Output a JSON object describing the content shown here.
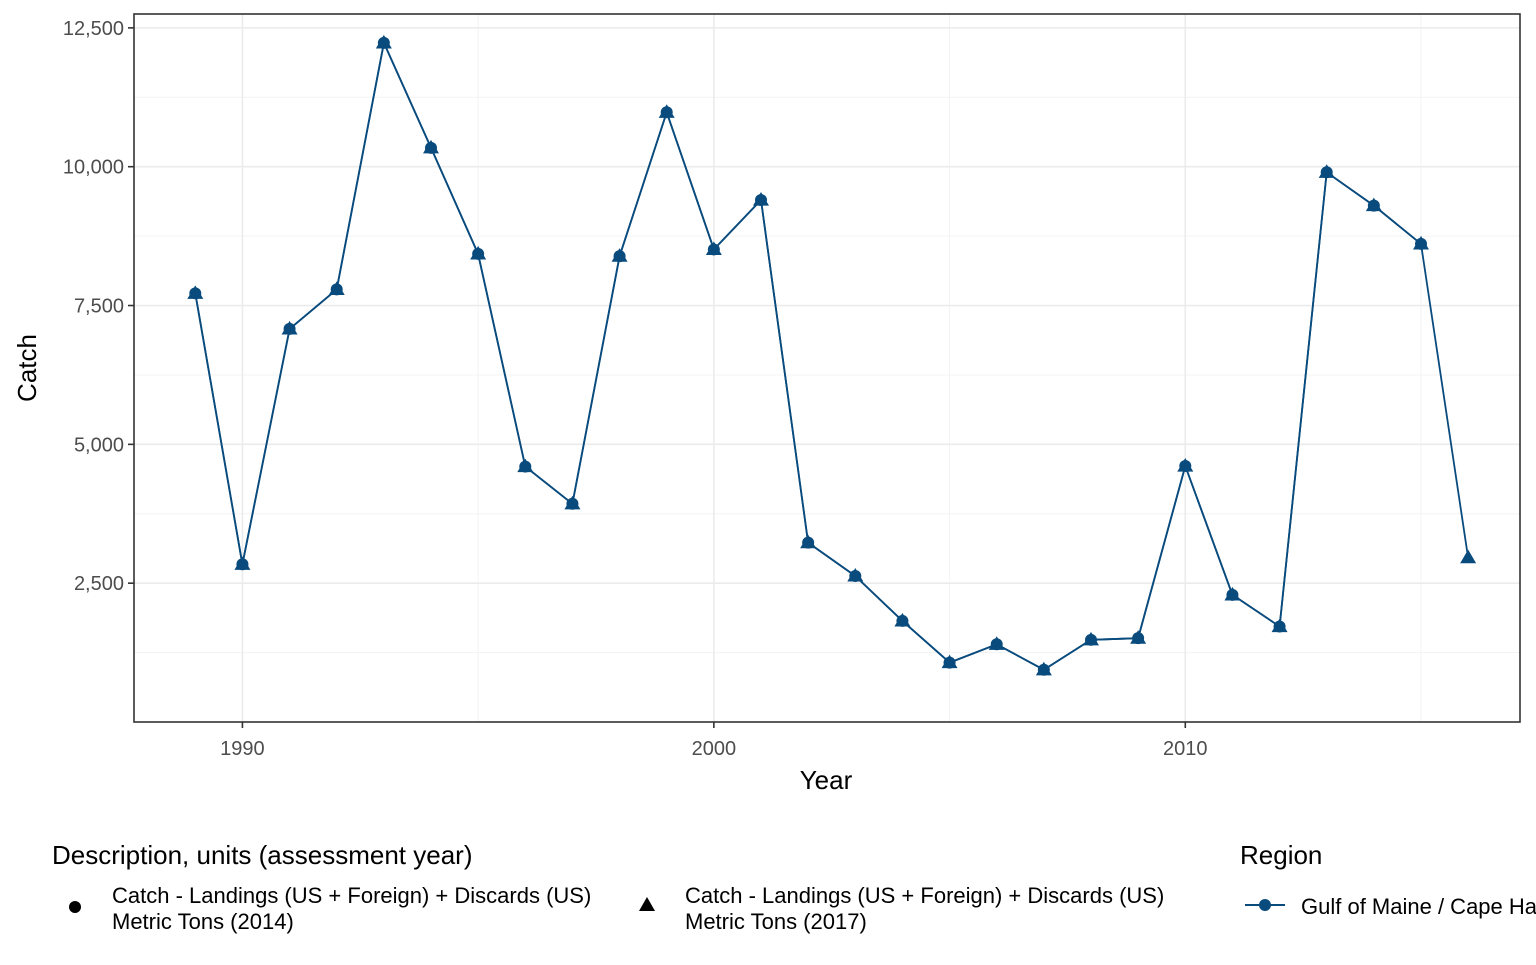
{
  "chart_data": {
    "type": "line",
    "xlabel": "Year",
    "ylabel": "Catch",
    "xlim": [
      1987.7,
      2017.1
    ],
    "ylim": [
      0,
      12750
    ],
    "x_ticks": [
      1990,
      2000,
      2010
    ],
    "x_tick_labels": [
      "1990",
      "2000",
      "2010"
    ],
    "y_ticks": [
      2500,
      5000,
      7500,
      10000,
      12500
    ],
    "y_tick_labels": [
      "2,500",
      "5,000",
      "7,500",
      "10,000",
      "12,500"
    ],
    "grid": true,
    "series_color": "#0a4b7e",
    "series": [
      {
        "x": [
          1989,
          1990,
          1991,
          1992,
          1993,
          1994,
          1995,
          1996,
          1997,
          1998,
          1999,
          2000,
          2001,
          2002,
          2003,
          2004,
          2005,
          2006,
          2007,
          2008,
          2009,
          2010,
          2011,
          2012,
          2013,
          2014,
          2015
        ],
        "values": [
          7720,
          2840,
          7080,
          7790,
          12230,
          10340,
          8430,
          4600,
          3930,
          8390,
          10980,
          8510,
          9400,
          3230,
          2630,
          1820,
          1070,
          1400,
          940,
          1480,
          1510,
          4610,
          2290,
          1720,
          9900,
          9300,
          8610
        ],
        "marker": "circle",
        "legend_shape": "Catch - Landings (US + Foreign) + Discards (US) Metric Tons (2014)"
      },
      {
        "x": [
          1989,
          1990,
          1991,
          1992,
          1993,
          1994,
          1995,
          1996,
          1997,
          1998,
          1999,
          2000,
          2001,
          2002,
          2003,
          2004,
          2005,
          2006,
          2007,
          2008,
          2009,
          2010,
          2011,
          2012,
          2013,
          2014,
          2015,
          2016
        ],
        "values": [
          7720,
          2840,
          7080,
          7790,
          12230,
          10340,
          8430,
          4600,
          3930,
          8390,
          10980,
          8510,
          9400,
          3230,
          2630,
          1820,
          1070,
          1400,
          940,
          1480,
          1510,
          4610,
          2290,
          1720,
          9900,
          9300,
          8610,
          2960
        ],
        "marker": "triangle",
        "legend_shape": "Catch - Landings (US + Foreign) + Discards (US) Metric Tons (2017)"
      }
    ]
  },
  "legend": {
    "description_title": "Description, units (assessment year)",
    "items": [
      {
        "shape": "circle",
        "line1": "Catch - Landings (US + Foreign) + Discards (US)",
        "line2": "Metric Tons (2014)"
      },
      {
        "shape": "triangle",
        "line1": "Catch - Landings (US + Foreign) + Discards (US)",
        "line2": "Metric Tons (2017)"
      }
    ],
    "region_title": "Region",
    "region_label": "Gulf of Maine / Cape Hatteras"
  }
}
